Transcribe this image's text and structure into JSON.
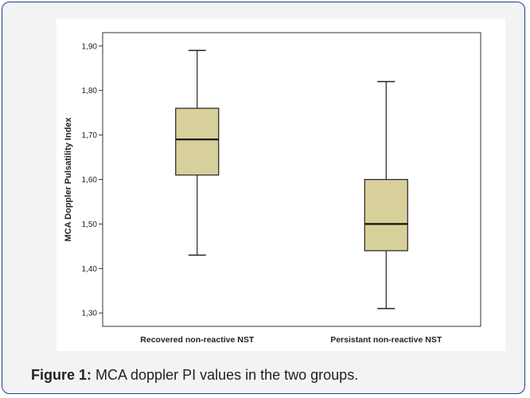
{
  "figure": {
    "label": "Figure 1:",
    "caption": " MCA doppler PI values in the two groups."
  },
  "colors": {
    "box_fill": "#d8d09b",
    "frame_border": "#1f3f8f",
    "background": "#f3f3f3"
  },
  "chart_data": {
    "type": "boxplot",
    "title": "",
    "xlabel": "",
    "ylabel": "MCA Doppler Pulsatility Index",
    "ylim": [
      1.27,
      1.93
    ],
    "yticks": [
      1.3,
      1.4,
      1.5,
      1.6,
      1.7,
      1.8,
      1.9
    ],
    "ytick_labels": [
      "1,30",
      "1,40",
      "1,50",
      "1,60",
      "1,70",
      "1,80",
      "1,90"
    ],
    "categories": [
      "Recovered non-reactive NST",
      "Persistant non-reactive NST"
    ],
    "boxes": [
      {
        "category": "Recovered non-reactive NST",
        "min": 1.43,
        "q1": 1.61,
        "median": 1.69,
        "q3": 1.76,
        "max": 1.89
      },
      {
        "category": "Persistant non-reactive NST",
        "min": 1.31,
        "q1": 1.44,
        "median": 1.5,
        "q3": 1.6,
        "max": 1.82
      }
    ],
    "grid": false,
    "legend": "none"
  }
}
